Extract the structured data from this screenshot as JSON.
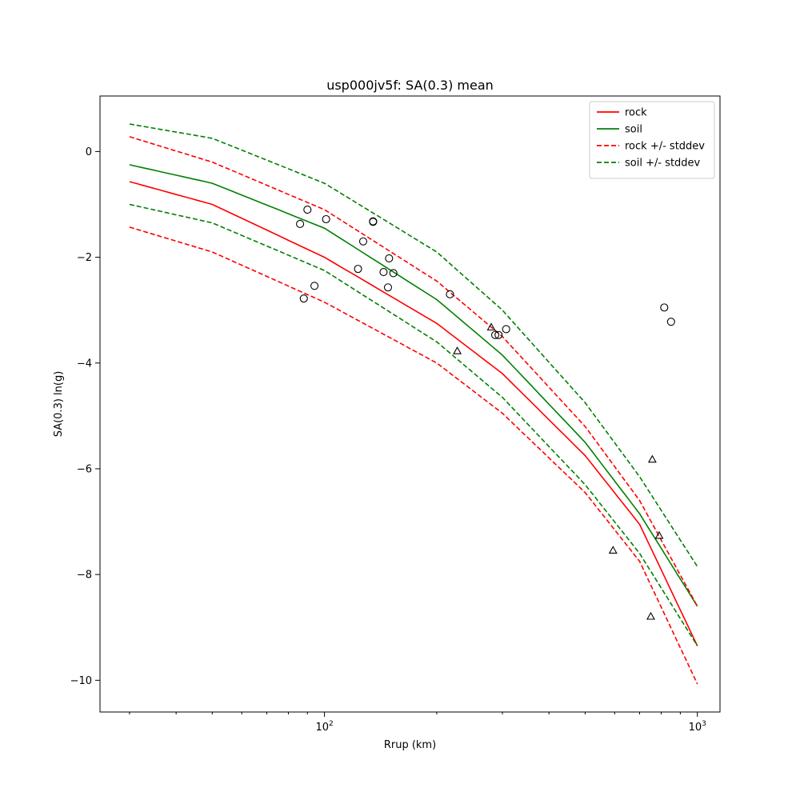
{
  "chart_data": {
    "type": "scatter",
    "title": "usp000jv5f: SA(0.3) mean",
    "xlabel": "Rrup (km)",
    "ylabel": "SA(0.3) ln(g)",
    "xscale": "log",
    "xlim": [
      25,
      1150
    ],
    "ylim": [
      -10.6,
      1.05
    ],
    "x_ticks": [
      {
        "value": 100,
        "base": "10",
        "exp": "2"
      },
      {
        "value": 1000,
        "base": "10",
        "exp": "3"
      }
    ],
    "y_ticks": [
      {
        "value": 0,
        "label": "0"
      },
      {
        "value": -2,
        "label": "−2"
      },
      {
        "value": -4,
        "label": "−4"
      },
      {
        "value": -6,
        "label": "−6"
      },
      {
        "value": -8,
        "label": "−8"
      },
      {
        "value": -10,
        "label": "−10"
      }
    ],
    "grid": false,
    "legend": {
      "placement": "top-right",
      "entries": [
        {
          "label": "rock",
          "color": "#ff0000",
          "style": "solid"
        },
        {
          "label": "soil",
          "color": "#008000",
          "style": "solid"
        },
        {
          "label": "rock +/- stddev",
          "color": "#ff0000",
          "style": "dashed"
        },
        {
          "label": "soil +/- stddev",
          "color": "#008000",
          "style": "dashed"
        }
      ]
    },
    "series": [
      {
        "name": "rock",
        "color": "#ff0000",
        "style": "solid",
        "x": [
          30,
          50,
          100,
          200,
          300,
          500,
          700,
          1000
        ],
        "y": [
          -0.57,
          -1.0,
          -2.0,
          -3.25,
          -4.2,
          -5.75,
          -7.05,
          -9.35
        ]
      },
      {
        "name": "soil",
        "color": "#008000",
        "style": "solid",
        "x": [
          30,
          50,
          100,
          200,
          300,
          500,
          700,
          1000
        ],
        "y": [
          -0.25,
          -0.6,
          -1.45,
          -2.8,
          -3.85,
          -5.5,
          -6.85,
          -8.6
        ]
      },
      {
        "name": "rock +/- stddev",
        "color": "#ff0000",
        "style": "dashed",
        "x": [
          30,
          50,
          100,
          200,
          300,
          500,
          700,
          1000
        ],
        "y": [
          0.28,
          -0.2,
          -1.1,
          -2.45,
          -3.5,
          -5.2,
          -6.6,
          -8.6
        ]
      },
      {
        "color": "#ff0000",
        "style": "dashed",
        "x": [
          30,
          50,
          100,
          200,
          300,
          500,
          700,
          1000
        ],
        "y": [
          -1.43,
          -1.9,
          -2.85,
          -4.0,
          -4.95,
          -6.45,
          -7.75,
          -10.07
        ]
      },
      {
        "name": "soil +/- stddev",
        "color": "#008000",
        "style": "dashed",
        "x": [
          30,
          50,
          100,
          200,
          300,
          500,
          700,
          1000
        ],
        "y": [
          0.52,
          0.25,
          -0.6,
          -1.9,
          -3.0,
          -4.75,
          -6.15,
          -7.85
        ]
      },
      {
        "color": "#008000",
        "style": "dashed",
        "x": [
          30,
          50,
          100,
          200,
          300,
          500,
          700,
          1000
        ],
        "y": [
          -1.0,
          -1.35,
          -2.25,
          -3.6,
          -4.65,
          -6.3,
          -7.6,
          -9.35
        ]
      }
    ],
    "points_circle": [
      {
        "x": 86,
        "y": -1.37
      },
      {
        "x": 90,
        "y": -1.1
      },
      {
        "x": 101,
        "y": -1.28
      },
      {
        "x": 135,
        "y": -1.32
      },
      {
        "x": 135,
        "y": -1.33
      },
      {
        "x": 127,
        "y": -1.7
      },
      {
        "x": 123,
        "y": -2.22
      },
      {
        "x": 144,
        "y": -2.28
      },
      {
        "x": 149,
        "y": -2.02
      },
      {
        "x": 153,
        "y": -2.3
      },
      {
        "x": 148,
        "y": -2.57
      },
      {
        "x": 94,
        "y": -2.54
      },
      {
        "x": 88,
        "y": -2.78
      },
      {
        "x": 217,
        "y": -2.7
      },
      {
        "x": 287,
        "y": -3.47
      },
      {
        "x": 293,
        "y": -3.47
      },
      {
        "x": 307,
        "y": -3.36
      },
      {
        "x": 815,
        "y": -2.95
      },
      {
        "x": 850,
        "y": -3.22
      }
    ],
    "points_triangle": [
      {
        "x": 227,
        "y": -3.78
      },
      {
        "x": 280,
        "y": -3.33
      },
      {
        "x": 757,
        "y": -5.83
      },
      {
        "x": 790,
        "y": -7.27
      },
      {
        "x": 594,
        "y": -7.55
      },
      {
        "x": 750,
        "y": -8.8
      }
    ]
  }
}
